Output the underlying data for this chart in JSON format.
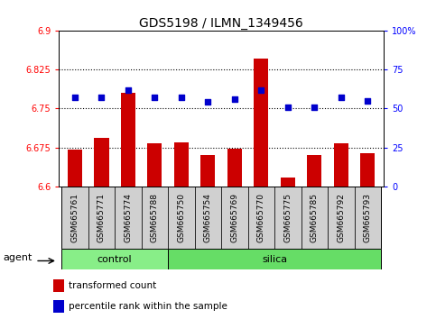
{
  "title": "GDS5198 / ILMN_1349456",
  "samples": [
    "GSM665761",
    "GSM665771",
    "GSM665774",
    "GSM665788",
    "GSM665750",
    "GSM665754",
    "GSM665769",
    "GSM665770",
    "GSM665775",
    "GSM665785",
    "GSM665792",
    "GSM665793"
  ],
  "n_control": 4,
  "n_silica": 8,
  "transformed_counts": [
    6.671,
    6.693,
    6.78,
    6.683,
    6.685,
    6.66,
    6.672,
    6.845,
    6.617,
    6.661,
    6.683,
    6.664
  ],
  "percentile_ranks": [
    57,
    57,
    62,
    57,
    57,
    54,
    56,
    62,
    51,
    51,
    57,
    55
  ],
  "ylim_left": [
    6.6,
    6.9
  ],
  "ylim_right": [
    0,
    100
  ],
  "yticks_left": [
    6.6,
    6.675,
    6.75,
    6.825,
    6.9
  ],
  "ytick_labels_left": [
    "6.6",
    "6.675",
    "6.75",
    "6.825",
    "6.9"
  ],
  "yticks_right": [
    0,
    25,
    50,
    75,
    100
  ],
  "ytick_labels_right": [
    "0",
    "25",
    "50",
    "75",
    "100%"
  ],
  "hlines": [
    6.675,
    6.75,
    6.825
  ],
  "bar_color": "#cc0000",
  "dot_color": "#0000cc",
  "bar_bottom": 6.6,
  "control_color": "#88ee88",
  "silica_color": "#66dd66",
  "group_names": [
    "control",
    "silica"
  ],
  "agent_label": "agent",
  "legend_bar_label": "transformed count",
  "legend_dot_label": "percentile rank within the sample",
  "title_fontsize": 10,
  "tick_fontsize": 7,
  "label_fontsize": 7.5,
  "sample_fontsize": 6.5,
  "group_fontsize": 8
}
